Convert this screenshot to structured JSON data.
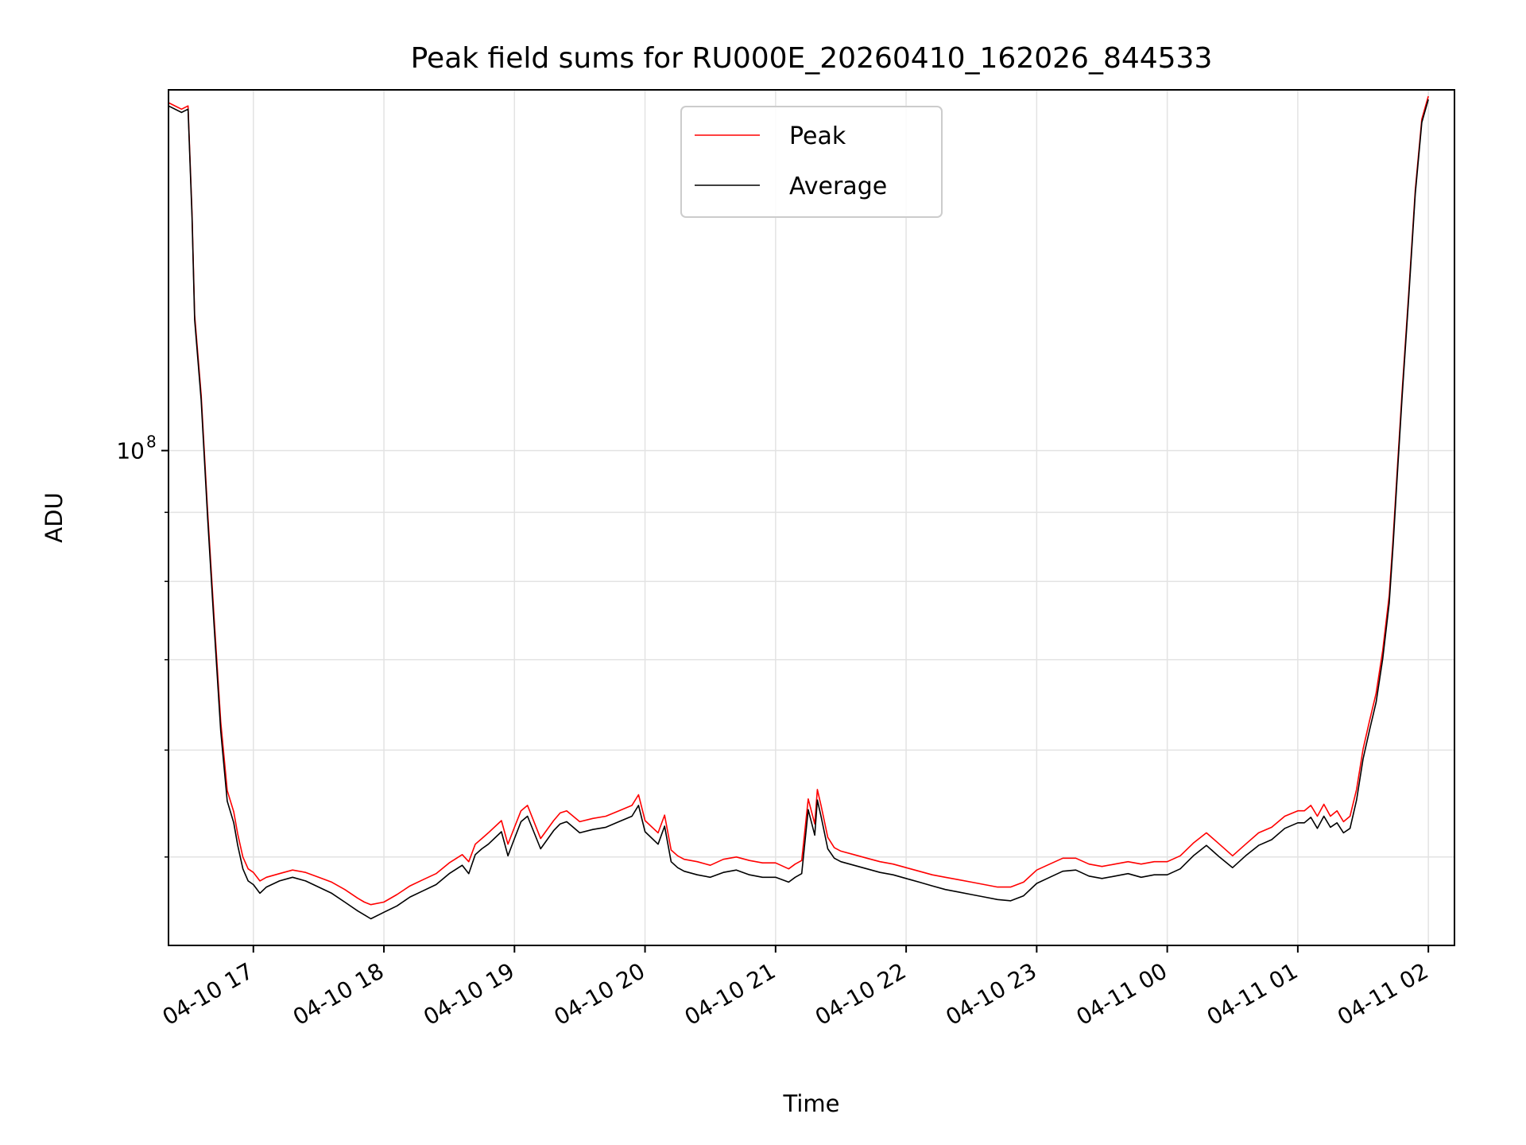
{
  "chart_data": {
    "type": "line",
    "title": "Peak field sums for RU000E_20260410_162026_844533",
    "xlabel": "Time",
    "ylabel": "ADU",
    "y_scale": "log",
    "ylim": [
      43000000,
      185000000
    ],
    "xlim_hours": [
      16.35,
      26.2
    ],
    "grid": true,
    "legend_position": "upper center",
    "x_ticks": [
      {
        "hour": 17,
        "label": "04-10 17"
      },
      {
        "hour": 18,
        "label": "04-10 18"
      },
      {
        "hour": 19,
        "label": "04-10 19"
      },
      {
        "hour": 20,
        "label": "04-10 20"
      },
      {
        "hour": 21,
        "label": "04-10 21"
      },
      {
        "hour": 22,
        "label": "04-10 22"
      },
      {
        "hour": 23,
        "label": "04-10 23"
      },
      {
        "hour": 24,
        "label": "04-11 00"
      },
      {
        "hour": 25,
        "label": "04-11 01"
      },
      {
        "hour": 26,
        "label": "04-11 02"
      }
    ],
    "y_major_ticks": [
      {
        "value": 100000000,
        "label_base": "10",
        "label_exp": "8"
      }
    ],
    "y_minor_ticks": [
      50000000,
      60000000,
      70000000,
      80000000,
      90000000,
      200000000
    ],
    "series": [
      {
        "name": "Peak",
        "color": "#ff0000",
        "x": [
          16.35,
          16.45,
          16.5,
          16.53,
          16.55,
          16.6,
          16.65,
          16.7,
          16.75,
          16.8,
          16.85,
          16.88,
          16.92,
          16.96,
          17.0,
          17.05,
          17.1,
          17.2,
          17.3,
          17.4,
          17.5,
          17.6,
          17.7,
          17.8,
          17.85,
          17.9,
          18.0,
          18.1,
          18.2,
          18.3,
          18.4,
          18.5,
          18.6,
          18.65,
          18.7,
          18.75,
          18.8,
          18.9,
          18.95,
          19.0,
          19.05,
          19.1,
          19.2,
          19.3,
          19.35,
          19.4,
          19.5,
          19.6,
          19.7,
          19.8,
          19.9,
          19.95,
          20.0,
          20.1,
          20.15,
          20.2,
          20.25,
          20.3,
          20.4,
          20.5,
          20.6,
          20.7,
          20.8,
          20.9,
          21.0,
          21.1,
          21.15,
          21.2,
          21.25,
          21.3,
          21.32,
          21.35,
          21.4,
          21.45,
          21.5,
          21.6,
          21.7,
          21.8,
          21.9,
          22.0,
          22.1,
          22.2,
          22.3,
          22.4,
          22.5,
          22.6,
          22.7,
          22.8,
          22.9,
          23.0,
          23.1,
          23.2,
          23.3,
          23.4,
          23.5,
          23.6,
          23.7,
          23.8,
          23.9,
          24.0,
          24.1,
          24.2,
          24.3,
          24.4,
          24.5,
          24.6,
          24.7,
          24.8,
          24.9,
          25.0,
          25.05,
          25.1,
          25.15,
          25.2,
          25.25,
          25.3,
          25.35,
          25.4,
          25.45,
          25.5,
          25.55,
          25.6,
          25.65,
          25.7,
          25.73,
          25.76,
          25.8,
          25.85,
          25.9,
          25.95,
          26.0
        ],
        "values": [
          181000000,
          179000000,
          180000000,
          150000000,
          126000000,
          110000000,
          90000000,
          75000000,
          63000000,
          56000000,
          54000000,
          52000000,
          50000000,
          49000000,
          48700000,
          48000000,
          48300000,
          48600000,
          48900000,
          48700000,
          48300000,
          47900000,
          47300000,
          46600000,
          46300000,
          46100000,
          46300000,
          46900000,
          47600000,
          48100000,
          48600000,
          49500000,
          50200000,
          49600000,
          51100000,
          51600000,
          52100000,
          53200000,
          51100000,
          52600000,
          54100000,
          54600000,
          51600000,
          53200000,
          53900000,
          54100000,
          53100000,
          53400000,
          53600000,
          54100000,
          54600000,
          55600000,
          53200000,
          52100000,
          53700000,
          50600000,
          50100000,
          49800000,
          49600000,
          49300000,
          49800000,
          50000000,
          49700000,
          49500000,
          49500000,
          49000000,
          49400000,
          49700000,
          55200000,
          52900000,
          56100000,
          54500000,
          51700000,
          50800000,
          50500000,
          50200000,
          49900000,
          49600000,
          49400000,
          49100000,
          48800000,
          48500000,
          48300000,
          48100000,
          47900000,
          47700000,
          47500000,
          47500000,
          47900000,
          48900000,
          49400000,
          49900000,
          49900000,
          49400000,
          49200000,
          49400000,
          49600000,
          49400000,
          49600000,
          49600000,
          50100000,
          51200000,
          52100000,
          51100000,
          50100000,
          51100000,
          52100000,
          52600000,
          53600000,
          54100000,
          54100000,
          54600000,
          53600000,
          54700000,
          53600000,
          54100000,
          53100000,
          53600000,
          56100000,
          60100000,
          63100000,
          66100000,
          71100000,
          78100000,
          86100000,
          96100000,
          111000000,
          131000000,
          156000000,
          176000000,
          183000000
        ]
      },
      {
        "name": "Average",
        "color": "#000000",
        "x": [
          16.35,
          16.45,
          16.5,
          16.53,
          16.55,
          16.6,
          16.65,
          16.7,
          16.75,
          16.8,
          16.85,
          16.88,
          16.92,
          16.96,
          17.0,
          17.05,
          17.1,
          17.2,
          17.3,
          17.4,
          17.5,
          17.6,
          17.7,
          17.8,
          17.85,
          17.9,
          18.0,
          18.1,
          18.2,
          18.3,
          18.4,
          18.5,
          18.6,
          18.65,
          18.7,
          18.75,
          18.8,
          18.9,
          18.95,
          19.0,
          19.05,
          19.1,
          19.2,
          19.3,
          19.35,
          19.4,
          19.5,
          19.6,
          19.7,
          19.8,
          19.9,
          19.95,
          20.0,
          20.1,
          20.15,
          20.2,
          20.25,
          20.3,
          20.4,
          20.5,
          20.6,
          20.7,
          20.8,
          20.9,
          21.0,
          21.1,
          21.15,
          21.2,
          21.25,
          21.3,
          21.32,
          21.35,
          21.4,
          21.45,
          21.5,
          21.6,
          21.7,
          21.8,
          21.9,
          22.0,
          22.1,
          22.2,
          22.3,
          22.4,
          22.5,
          22.6,
          22.7,
          22.8,
          22.9,
          23.0,
          23.1,
          23.2,
          23.3,
          23.4,
          23.5,
          23.6,
          23.7,
          23.8,
          23.9,
          24.0,
          24.1,
          24.2,
          24.3,
          24.4,
          24.5,
          24.6,
          24.7,
          24.8,
          24.9,
          25.0,
          25.05,
          25.1,
          25.15,
          25.2,
          25.25,
          25.3,
          25.35,
          25.4,
          25.45,
          25.5,
          25.55,
          25.6,
          25.65,
          25.7,
          25.73,
          25.76,
          25.8,
          25.85,
          25.9,
          25.95,
          26.0
        ],
        "values": [
          180000000,
          178000000,
          179000000,
          149000000,
          125000000,
          109000000,
          89000000,
          74000000,
          62000000,
          55000000,
          53000000,
          51000000,
          49000000,
          48000000,
          47700000,
          47000000,
          47500000,
          48000000,
          48300000,
          48000000,
          47500000,
          47000000,
          46300000,
          45600000,
          45300000,
          45000000,
          45500000,
          46000000,
          46700000,
          47200000,
          47700000,
          48600000,
          49300000,
          48600000,
          50200000,
          50700000,
          51100000,
          52200000,
          50100000,
          51600000,
          53100000,
          53600000,
          50700000,
          52300000,
          52900000,
          53100000,
          52100000,
          52400000,
          52600000,
          53100000,
          53600000,
          54600000,
          52200000,
          51100000,
          52700000,
          49600000,
          49100000,
          48800000,
          48500000,
          48300000,
          48700000,
          48900000,
          48500000,
          48300000,
          48300000,
          47900000,
          48300000,
          48600000,
          54200000,
          51900000,
          55100000,
          53500000,
          50700000,
          49900000,
          49600000,
          49300000,
          49000000,
          48700000,
          48500000,
          48200000,
          47900000,
          47600000,
          47300000,
          47100000,
          46900000,
          46700000,
          46500000,
          46400000,
          46800000,
          47800000,
          48300000,
          48800000,
          48900000,
          48400000,
          48200000,
          48400000,
          48600000,
          48300000,
          48500000,
          48500000,
          49000000,
          50100000,
          51000000,
          50000000,
          49100000,
          50100000,
          51000000,
          51500000,
          52500000,
          53000000,
          53000000,
          53500000,
          52500000,
          53600000,
          52600000,
          53000000,
          52100000,
          52500000,
          55100000,
          59100000,
          62100000,
          65100000,
          70100000,
          77100000,
          85100000,
          95100000,
          110000000,
          130000000,
          155000000,
          175000000,
          182000000
        ]
      }
    ]
  }
}
